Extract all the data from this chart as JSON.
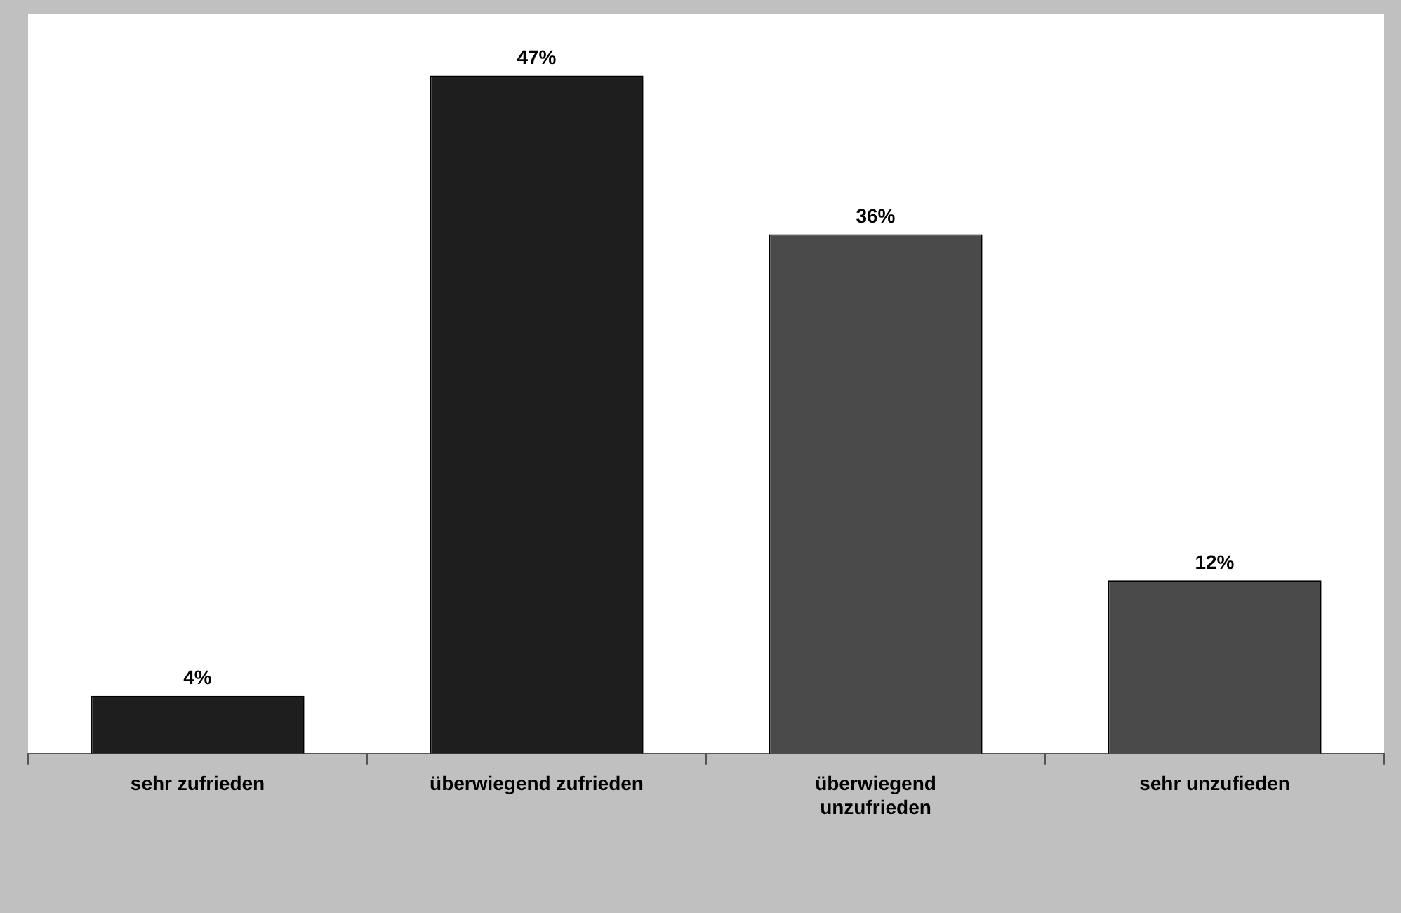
{
  "chart_data": {
    "type": "bar",
    "categories": [
      "sehr zufrieden",
      "überwiegend zufrieden",
      "überwiegend unzufrieden",
      "sehr unzufieden"
    ],
    "values": [
      4,
      47,
      36,
      12
    ],
    "colors": [
      "#1e1e1e",
      "#1e1e1e",
      "#4a4a4a",
      "#4a4a4a"
    ],
    "value_labels": [
      "4%",
      "47%",
      "36%",
      "12%"
    ],
    "grid": false,
    "legend": false
  }
}
